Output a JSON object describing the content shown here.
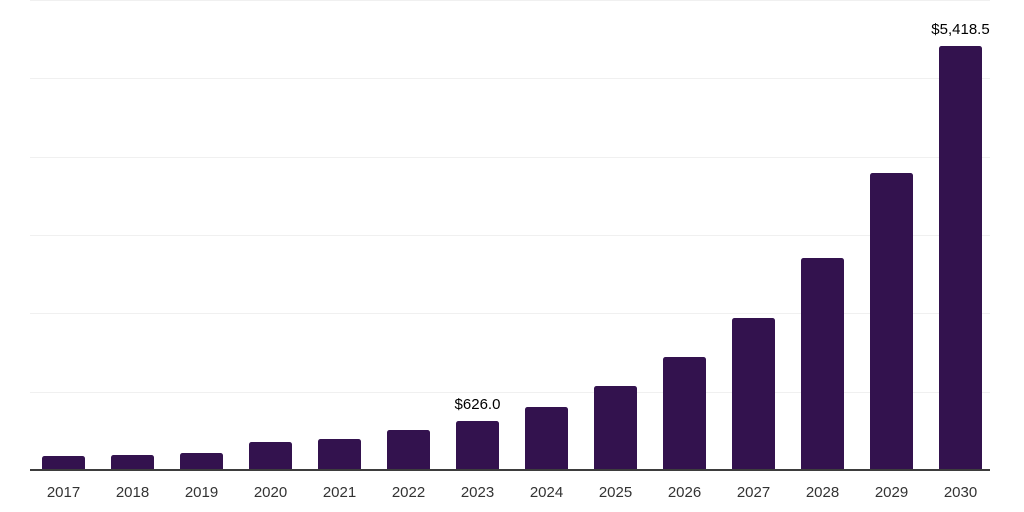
{
  "chart_data": {
    "type": "bar",
    "title": "",
    "xlabel": "",
    "ylabel": "",
    "categories": [
      "2017",
      "2018",
      "2019",
      "2020",
      "2021",
      "2022",
      "2023",
      "2024",
      "2025",
      "2026",
      "2027",
      "2028",
      "2029",
      "2030"
    ],
    "values": [
      180,
      197,
      218,
      352,
      392,
      505,
      626.0,
      806,
      1071,
      1441,
      1944,
      2701,
      3786,
      5418.5
    ],
    "data_labels": [
      "",
      "",
      "",
      "",
      "",
      "",
      "$626.0",
      "",
      "",
      "",
      "",
      "",
      "",
      "$5,418.5"
    ],
    "labeled_points": [
      {
        "category": "2023",
        "label": "$626.0",
        "value": 626.0
      },
      {
        "category": "2030",
        "label": "$5,418.5",
        "value": 5418.5
      }
    ],
    "ylim": [
      0,
      6000
    ],
    "gridline_interval": 1000,
    "grid": "horizontal gridlines only, no y-axis tick labels",
    "legend_position": "none",
    "colors": {
      "bar": "#33124E",
      "axis_line": "#3d3d3d",
      "tick_label": "#333333",
      "value_label": "#000000",
      "gridline": "#f0f0f0",
      "background": "#ffffff"
    }
  }
}
